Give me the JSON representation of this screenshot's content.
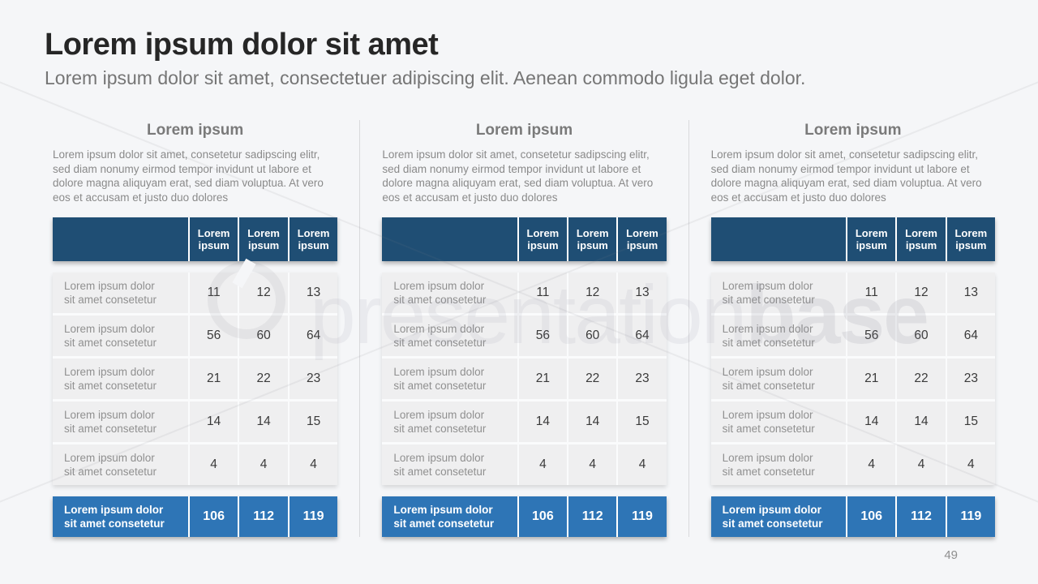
{
  "slide": {
    "title": "Lorem ipsum dolor sit amet",
    "subtitle": "Lorem ipsum dolor sit amet, consectetuer adipiscing elit. Aenean commodo ligula eget dolor.",
    "page_number": "49",
    "watermark": {
      "text_light": "presentation",
      "text_bold": "base",
      "logo": "circle-logo"
    }
  },
  "colors": {
    "background": "#f5f6f8",
    "table_header_blue": "#1f4e74",
    "table_total_blue": "#2e75b6",
    "row_gray": "#efeff0",
    "title_text": "#262626",
    "muted_text": "#8a8a8a"
  },
  "columns": [
    {
      "heading": "Lorem ipsum",
      "paragraph": "Lorem ipsum dolor sit amet, consetetur sadipscing elitr, sed diam nonumy eirmod tempor invidunt ut labore et dolore magna aliquyam erat, sed diam voluptua. At vero eos et accusam et justo duo dolores",
      "table": {
        "header_labels": [
          "Lorem ipsum",
          "Lorem ipsum",
          "Lorem ipsum"
        ],
        "rows": [
          {
            "label": "Lorem ipsum dolor sit amet consetetur",
            "values": [
              "11",
              "12",
              "13"
            ]
          },
          {
            "label": "Lorem ipsum dolor sit amet consetetur",
            "values": [
              "56",
              "60",
              "64"
            ]
          },
          {
            "label": "Lorem ipsum dolor sit amet consetetur",
            "values": [
              "21",
              "22",
              "23"
            ]
          },
          {
            "label": "Lorem ipsum dolor sit amet consetetur",
            "values": [
              "14",
              "14",
              "15"
            ]
          },
          {
            "label": "Lorem ipsum dolor sit amet consetetur",
            "values": [
              "4",
              "4",
              "4"
            ]
          }
        ],
        "total": {
          "label": "Lorem ipsum dolor sit amet consetetur",
          "values": [
            "106",
            "112",
            "119"
          ]
        }
      }
    },
    {
      "heading": "Lorem ipsum",
      "paragraph": "Lorem ipsum dolor sit amet, consetetur sadipscing elitr, sed diam nonumy eirmod tempor invidunt ut labore et dolore magna aliquyam erat, sed diam voluptua. At vero eos et accusam et justo duo dolores",
      "table": {
        "header_labels": [
          "Lorem ipsum",
          "Lorem ipsum",
          "Lorem ipsum"
        ],
        "rows": [
          {
            "label": "Lorem ipsum dolor sit amet consetetur",
            "values": [
              "11",
              "12",
              "13"
            ]
          },
          {
            "label": "Lorem ipsum dolor sit amet consetetur",
            "values": [
              "56",
              "60",
              "64"
            ]
          },
          {
            "label": "Lorem ipsum dolor sit amet consetetur",
            "values": [
              "21",
              "22",
              "23"
            ]
          },
          {
            "label": "Lorem ipsum dolor sit amet consetetur",
            "values": [
              "14",
              "14",
              "15"
            ]
          },
          {
            "label": "Lorem ipsum dolor sit amet consetetur",
            "values": [
              "4",
              "4",
              "4"
            ]
          }
        ],
        "total": {
          "label": "Lorem ipsum dolor sit amet consetetur",
          "values": [
            "106",
            "112",
            "119"
          ]
        }
      }
    },
    {
      "heading": "Lorem ipsum",
      "paragraph": "Lorem ipsum dolor sit amet, consetetur sadipscing elitr, sed diam nonumy eirmod tempor invidunt ut labore et dolore magna aliquyam erat, sed diam voluptua. At vero eos et accusam et justo duo dolores",
      "table": {
        "header_labels": [
          "Lorem ipsum",
          "Lorem ipsum",
          "Lorem ipsum"
        ],
        "rows": [
          {
            "label": "Lorem ipsum dolor sit amet consetetur",
            "values": [
              "11",
              "12",
              "13"
            ]
          },
          {
            "label": "Lorem ipsum dolor sit amet consetetur",
            "values": [
              "56",
              "60",
              "64"
            ]
          },
          {
            "label": "Lorem ipsum dolor sit amet consetetur",
            "values": [
              "21",
              "22",
              "23"
            ]
          },
          {
            "label": "Lorem ipsum dolor sit amet consetetur",
            "values": [
              "14",
              "14",
              "15"
            ]
          },
          {
            "label": "Lorem ipsum dolor sit amet consetetur",
            "values": [
              "4",
              "4",
              "4"
            ]
          }
        ],
        "total": {
          "label": "Lorem ipsum dolor sit amet consetetur",
          "values": [
            "106",
            "112",
            "119"
          ]
        }
      }
    }
  ]
}
